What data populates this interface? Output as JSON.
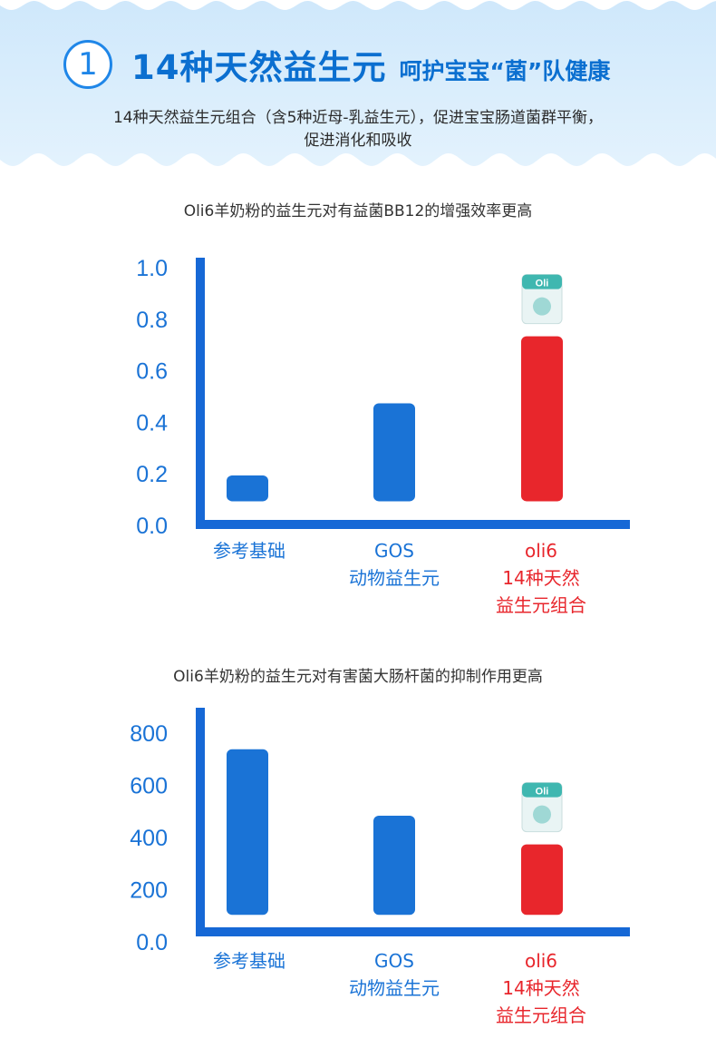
{
  "header": {
    "badge_number": "1",
    "title": "14种天然益生元",
    "subtitle": "呵护宝宝“菌”队健康",
    "intro_line1": "14种天然益生元组合（含5种近母-乳益生元），促进宝宝肠道菌群平衡，",
    "intro_line2": "促进消化和吸收"
  },
  "colors": {
    "header_bg": "#d6ecfc",
    "axis_blue": "#1668d6",
    "bar_blue": "#1a73d6",
    "bar_red": "#e8262c",
    "title_blue": "#0b6fd0"
  },
  "product_icon": {
    "brand_text": "Oli",
    "icon": "milk-powder-pack-icon"
  },
  "chart_data": [
    {
      "type": "bar",
      "title": "Oli6羊奶粉的益生元对有益菌BB12的增强效率更高",
      "yticks": [
        "1.0",
        "0.8",
        "0.6",
        "0.4",
        "0.2",
        "0.0"
      ],
      "tick_values": [
        1.0,
        0.8,
        0.6,
        0.4,
        0.2,
        0.0
      ],
      "ylim": [
        0,
        1.0
      ],
      "categories": [
        {
          "lines": [
            "参考基础"
          ],
          "color": "blue"
        },
        {
          "lines": [
            "GOS",
            "动物益生元"
          ],
          "color": "blue"
        },
        {
          "lines": [
            "oli6",
            "14种天然",
            "益生元组合"
          ],
          "color": "red"
        }
      ],
      "bars": [
        {
          "bottom": 0.09,
          "top": 0.19
        },
        {
          "bottom": 0.09,
          "top": 0.47
        },
        {
          "bottom": 0.09,
          "top": 0.73
        }
      ],
      "highlight_index": 2
    },
    {
      "type": "bar",
      "title": "Oli6羊奶粉的益生元对有害菌大肠杆菌的抑制作用更高",
      "yticks": [
        "800",
        "600",
        "400",
        "200",
        "0.0"
      ],
      "tick_values": [
        800,
        600,
        400,
        200,
        0
      ],
      "ylim": [
        0,
        800
      ],
      "categories": [
        {
          "lines": [
            "参考基础"
          ],
          "color": "blue"
        },
        {
          "lines": [
            "GOS",
            "动物益生元"
          ],
          "color": "blue"
        },
        {
          "lines": [
            "oli6",
            "14种天然",
            "益生元组合"
          ],
          "color": "red"
        }
      ],
      "bars": [
        {
          "bottom": 100,
          "top": 735
        },
        {
          "bottom": 100,
          "top": 480
        },
        {
          "bottom": 100,
          "top": 370
        }
      ],
      "highlight_index": 2
    }
  ]
}
